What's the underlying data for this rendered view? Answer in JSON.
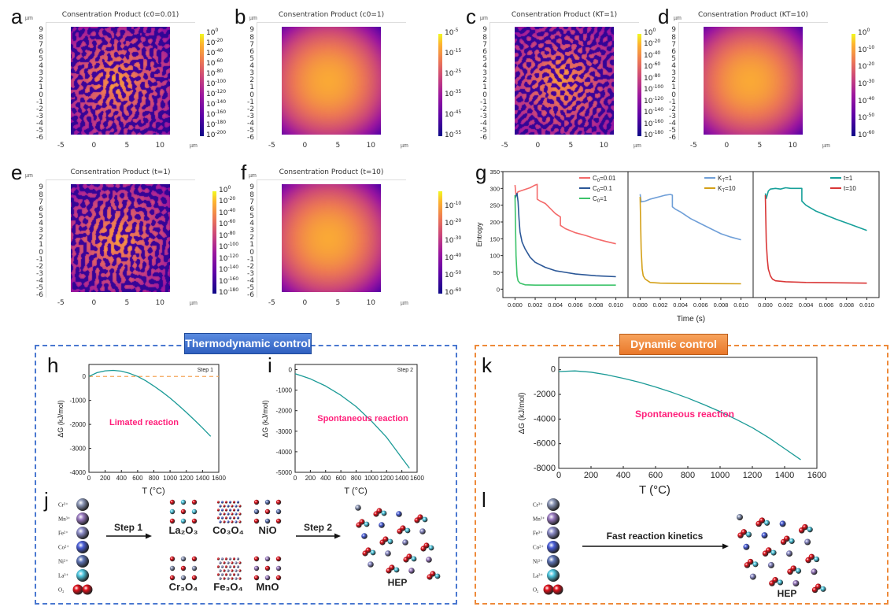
{
  "panel_labels": {
    "a": "a",
    "b": "b",
    "c": "c",
    "d": "d",
    "e": "e",
    "f": "f",
    "g": "g",
    "h": "h",
    "i": "i",
    "j": "j",
    "k": "k",
    "l": "l"
  },
  "groups": {
    "thermodynamic": {
      "title": "Thermodynamic control",
      "color": "#4a78d0"
    },
    "dynamic": {
      "title": "Dynamic control",
      "color": "#ee8a3a"
    }
  },
  "chart_data": [
    {
      "panel": "a",
      "type": "heatmap",
      "title": "Consentration Product (c0=0.01)",
      "unit": "µm",
      "pattern": "noisy",
      "colorscale": "plasma",
      "x_ticks": [
        "-5",
        "0",
        "5",
        "10"
      ],
      "y_ticks": [
        "9",
        "8",
        "7",
        "6",
        "5",
        "4",
        "3",
        "2",
        "1",
        "0",
        "-1",
        "-2",
        "-3",
        "-4",
        "-5",
        "-6"
      ],
      "colorbar": {
        "base": "10",
        "exponents": [
          "0",
          "-20",
          "-40",
          "-60",
          "-80",
          "-100",
          "-120",
          "-140",
          "-160",
          "-180",
          "-200"
        ]
      }
    },
    {
      "panel": "b",
      "type": "heatmap",
      "title": "Consentration Product (c0=1)",
      "unit": "µm",
      "pattern": "smooth",
      "colorscale": "plasma",
      "x_ticks": [
        "-5",
        "0",
        "5",
        "10"
      ],
      "y_ticks": [
        "9",
        "8",
        "7",
        "6",
        "5",
        "4",
        "3",
        "2",
        "1",
        "0",
        "-1",
        "-2",
        "-3",
        "-4",
        "-5",
        "-6"
      ],
      "colorbar": {
        "base": "10",
        "exponents": [
          "-5",
          "-15",
          "-25",
          "-35",
          "-45",
          "-55"
        ]
      }
    },
    {
      "panel": "c",
      "type": "heatmap",
      "title": "Consentration Product (KT=1)",
      "unit": "µm",
      "pattern": "noisy",
      "colorscale": "plasma",
      "x_ticks": [
        "-5",
        "0",
        "5",
        "10"
      ],
      "y_ticks": [
        "9",
        "8",
        "7",
        "6",
        "5",
        "4",
        "3",
        "2",
        "1",
        "0",
        "-1",
        "-2",
        "-3",
        "-4",
        "-5",
        "-6"
      ],
      "colorbar": {
        "base": "10",
        "exponents": [
          "0",
          "-20",
          "-40",
          "-60",
          "-80",
          "-100",
          "-120",
          "-140",
          "-160",
          "-180"
        ]
      }
    },
    {
      "panel": "d",
      "type": "heatmap",
      "title": "Consentration Product (KT=10)",
      "unit": "µm",
      "pattern": "smooth",
      "colorscale": "plasma",
      "x_ticks": [
        "-5",
        "0",
        "5",
        "10"
      ],
      "y_ticks": [
        "9",
        "8",
        "7",
        "6",
        "5",
        "4",
        "3",
        "2",
        "1",
        "0",
        "-1",
        "-2",
        "-3",
        "-4",
        "-5",
        "-6"
      ],
      "colorbar": {
        "base": "10",
        "exponents": [
          "0",
          "-10",
          "-20",
          "-30",
          "-40",
          "-50",
          "-60"
        ]
      }
    },
    {
      "panel": "e",
      "type": "heatmap",
      "title": "Consentration Product (t=1)",
      "unit": "µm",
      "pattern": "noisy",
      "colorscale": "plasma",
      "x_ticks": [
        "-5",
        "0",
        "5",
        "10"
      ],
      "y_ticks": [
        "9",
        "8",
        "7",
        "6",
        "5",
        "4",
        "3",
        "2",
        "1",
        "0",
        "-1",
        "-2",
        "-3",
        "-4",
        "-5",
        "-6"
      ],
      "colorbar": {
        "base": "10",
        "exponents": [
          "0",
          "-20",
          "-40",
          "-60",
          "-80",
          "-100",
          "-120",
          "-140",
          "-160",
          "-180"
        ]
      }
    },
    {
      "panel": "f",
      "type": "heatmap",
      "title": "Consentration Product (t=10)",
      "unit": "µm",
      "pattern": "smooth",
      "colorscale": "plasma",
      "x_ticks": [
        "-5",
        "0",
        "5",
        "10"
      ],
      "y_ticks": [
        "9",
        "8",
        "7",
        "6",
        "5",
        "4",
        "3",
        "2",
        "1",
        "0",
        "-1",
        "-2",
        "-3",
        "-4",
        "-5",
        "-6"
      ],
      "colorbar": {
        "base": "10",
        "exponents": [
          "-10",
          "-20",
          "-30",
          "-40",
          "-50",
          "-60"
        ]
      }
    },
    {
      "panel": "g",
      "type": "line",
      "xlabel": "Time (s)",
      "ylabel": "Entropy",
      "ylim": [
        -25,
        350
      ],
      "y_ticks": [
        "0",
        "50",
        "100",
        "150",
        "200",
        "250",
        "300",
        "350"
      ],
      "x_ticks": [
        "0.000",
        "0.002",
        "0.004",
        "0.006",
        "0.008",
        "0.010"
      ],
      "xlim": [
        -0.0005,
        0.0105
      ],
      "subplots": [
        {
          "series": [
            {
              "name": {
                "base": "C",
                "sub": "0",
                "rest": "=0.01"
              },
              "color": "#f46a6a",
              "x": [
                0,
                0.0001,
                0.0003,
                0.001,
                0.0015,
                0.002,
                0.0022,
                0.0022,
                0.0025,
                0.003,
                0.0035,
                0.004,
                0.0045,
                0.0045,
                0.005,
                0.006,
                0.007,
                0.008,
                0.009,
                0.01
              ],
              "y": [
                310,
                280,
                290,
                297,
                302,
                310,
                312,
                268,
                262,
                255,
                240,
                225,
                215,
                190,
                180,
                168,
                160,
                150,
                142,
                135
              ]
            },
            {
              "name": {
                "base": "C",
                "sub": "0",
                "rest": "=0.1"
              },
              "color": "#2b5797",
              "x": [
                0,
                0.0002,
                0.0003,
                0.0004,
                0.0005,
                0.0007,
                0.001,
                0.0015,
                0.002,
                0.003,
                0.004,
                0.005,
                0.006,
                0.008,
                0.01
              ],
              "y": [
                270,
                285,
                260,
                210,
                170,
                140,
                120,
                95,
                80,
                65,
                55,
                50,
                45,
                40,
                37
              ]
            },
            {
              "name": {
                "base": "C",
                "sub": "0",
                "rest": "=1"
              },
              "color": "#3cc36a",
              "x": [
                0,
                0.0001,
                0.0002,
                0.0003,
                0.0005,
                0.001,
                0.002,
                0.004,
                0.01
              ],
              "y": [
                280,
                100,
                40,
                25,
                18,
                13,
                12,
                12,
                12
              ]
            }
          ]
        },
        {
          "series": [
            {
              "name": {
                "base": "K",
                "sub": "T",
                "rest": "=1"
              },
              "color": "#6f9fd8",
              "x": [
                0,
                0.0001,
                0.0005,
                0.001,
                0.0015,
                0.002,
                0.0025,
                0.003,
                0.0032,
                0.0032,
                0.0035,
                0.004,
                0.005,
                0.006,
                0.007,
                0.008,
                0.009,
                0.01
              ],
              "y": [
                283,
                260,
                262,
                268,
                272,
                276,
                280,
                282,
                280,
                245,
                238,
                230,
                210,
                195,
                180,
                165,
                155,
                147
              ]
            },
            {
              "name": {
                "base": "K",
                "sub": "T",
                "rest": "=10"
              },
              "color": "#d4a017",
              "x": [
                0,
                0.0001,
                0.0002,
                0.0003,
                0.0005,
                0.001,
                0.002,
                0.004,
                0.01
              ],
              "y": [
                275,
                120,
                60,
                40,
                30,
                20,
                18,
                17,
                16
              ]
            }
          ]
        },
        {
          "series": [
            {
              "name": {
                "base": "t",
                "sub": "",
                "rest": "=1"
              },
              "color": "#17a09a",
              "x": [
                0,
                0.0001,
                0.0003,
                0.0005,
                0.001,
                0.0015,
                0.002,
                0.0025,
                0.003,
                0.0036,
                0.0036,
                0.004,
                0.005,
                0.006,
                0.007,
                0.008,
                0.009,
                0.01
              ],
              "y": [
                285,
                270,
                292,
                298,
                300,
                298,
                302,
                300,
                300,
                300,
                262,
                250,
                232,
                220,
                208,
                197,
                186,
                175
              ]
            },
            {
              "name": {
                "base": "t",
                "sub": "",
                "rest": "=10"
              },
              "color": "#d93636",
              "x": [
                0,
                0.0001,
                0.0002,
                0.0003,
                0.0005,
                0.0007,
                0.001,
                0.002,
                0.004,
                0.01
              ],
              "y": [
                280,
                140,
                90,
                60,
                40,
                30,
                25,
                22,
                20,
                18
              ]
            }
          ]
        }
      ]
    },
    {
      "panel": "h",
      "type": "line",
      "xlabel": "T (°C)",
      "ylabel": "ΔG (kJ/mol)",
      "xlim": [
        0,
        1600
      ],
      "ylim": [
        -4000,
        500
      ],
      "x_ticks": [
        "0",
        "200",
        "400",
        "600",
        "800",
        "1000",
        "1200",
        "1400",
        "1600"
      ],
      "y_ticks": [
        "0",
        "-1000",
        "-2000",
        "-3000",
        "-4000"
      ],
      "step_label": "Step 1",
      "annotation": "Limated reaction",
      "annotation_color": "#ff1f7a",
      "reference_line": {
        "y": 0,
        "color": "#f5a55a",
        "style": "dashed"
      },
      "series": [
        {
          "color": "#1a9a96",
          "x": [
            0,
            100,
            200,
            300,
            400,
            500,
            600,
            700,
            800,
            900,
            1000,
            1100,
            1200,
            1300,
            1400,
            1500
          ],
          "y": [
            0,
            160,
            235,
            255,
            220,
            130,
            0,
            -180,
            -400,
            -640,
            -900,
            -1190,
            -1500,
            -1820,
            -2150,
            -2500
          ]
        }
      ]
    },
    {
      "panel": "i",
      "type": "line",
      "xlabel": "T (°C)",
      "ylabel": "ΔG (kJ/mol)",
      "xlim": [
        0,
        1600
      ],
      "ylim": [
        -5000,
        250
      ],
      "x_ticks": [
        "0",
        "200",
        "400",
        "600",
        "800",
        "1000",
        "1200",
        "1400",
        "1600"
      ],
      "y_ticks": [
        "0",
        "-1000",
        "-2000",
        "-3000",
        "-4000",
        "-5000"
      ],
      "step_label": "Step 2",
      "annotation": "Spontaneous reaction",
      "annotation_color": "#ff1f7a",
      "series": [
        {
          "color": "#1a9a96",
          "x": [
            0,
            200,
            400,
            600,
            800,
            1000,
            1200,
            1400,
            1500
          ],
          "y": [
            -200,
            -450,
            -800,
            -1250,
            -1800,
            -2500,
            -3300,
            -4300,
            -4800
          ]
        }
      ]
    },
    {
      "panel": "k",
      "type": "line",
      "xlabel": "T (°C)",
      "ylabel": "ΔG (kJ/mol)",
      "xlim": [
        0,
        1600
      ],
      "ylim": [
        -8000,
        1000
      ],
      "x_ticks": [
        "0",
        "200",
        "400",
        "600",
        "800",
        "1000",
        "1200",
        "1400",
        "1600"
      ],
      "y_ticks": [
        "0",
        "-2000",
        "-4000",
        "-6000",
        "-8000"
      ],
      "annotation": "Spontaneous reaction",
      "annotation_color": "#ff1f7a",
      "series": [
        {
          "color": "#1a9a96",
          "x": [
            0,
            100,
            200,
            300,
            400,
            500,
            600,
            700,
            800,
            900,
            1000,
            1100,
            1200,
            1300,
            1400,
            1500
          ],
          "y": [
            -150,
            -100,
            -200,
            -420,
            -700,
            -1020,
            -1400,
            -1830,
            -2300,
            -2830,
            -3400,
            -4030,
            -4700,
            -5500,
            -6400,
            -7300
          ]
        }
      ]
    }
  ],
  "schematics": {
    "j": {
      "ions": [
        {
          "label": "Cr³⁺",
          "color": "#8a95b5"
        },
        {
          "label": "Mn³⁺",
          "color": "#9a7ac0"
        },
        {
          "label": "Fe²⁺",
          "color": "#8c8cc8"
        },
        {
          "label": "Co²⁺",
          "color": "#4b5fd8"
        },
        {
          "label": "Ni²⁺",
          "color": "#5f75b5"
        },
        {
          "label": "La³⁺",
          "color": "#4ec8e0"
        },
        {
          "label": "O₂",
          "color": "#e0101a"
        }
      ],
      "step1": "Step 1",
      "step2": "Step 2",
      "compounds": [
        "La₂O₃",
        "Co₃O₄",
        "NiO",
        "Cr₃O₄",
        "Fe₃O₄",
        "MnO"
      ],
      "product": "HEP"
    },
    "l": {
      "ions": [
        {
          "label": "Cr³⁺",
          "color": "#8a95b5"
        },
        {
          "label": "Mn³⁺",
          "color": "#9a7ac0"
        },
        {
          "label": "Fe³⁺",
          "color": "#8c8cc8"
        },
        {
          "label": "Co²⁺",
          "color": "#4b5fd8"
        },
        {
          "label": "Ni²⁺",
          "color": "#5f75b5"
        },
        {
          "label": "La³⁺",
          "color": "#4ec8e0"
        },
        {
          "label": "O₂",
          "color": "#e0101a"
        }
      ],
      "arrow_label": "Fast reaction kinetics",
      "product": "HEP"
    }
  }
}
